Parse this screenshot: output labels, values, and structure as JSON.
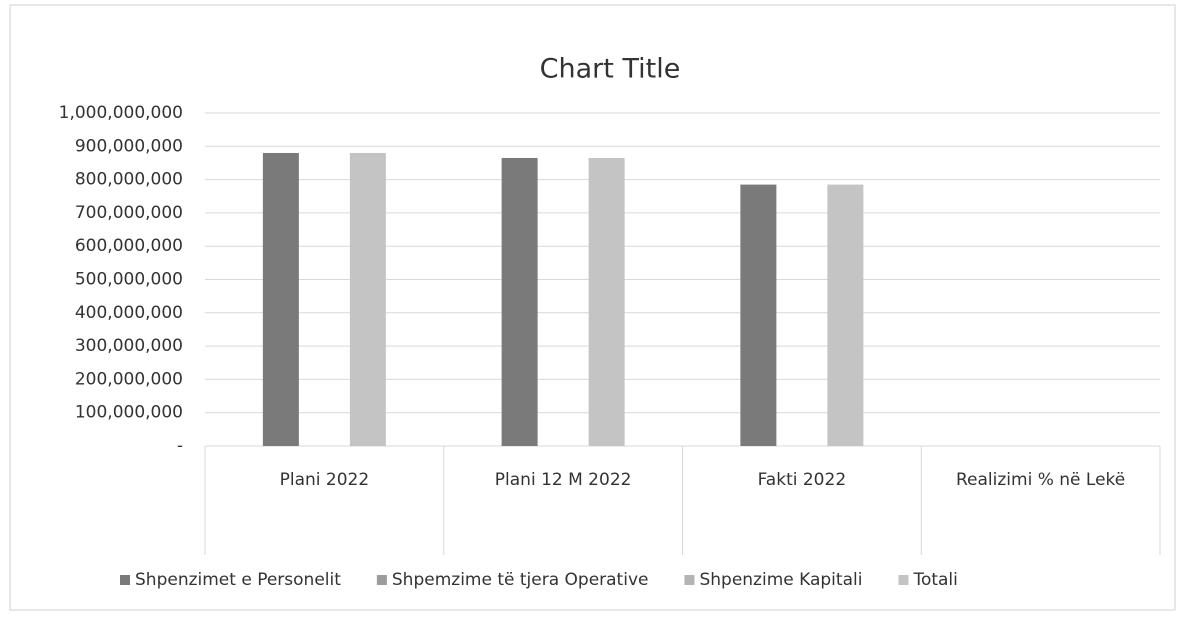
{
  "chart_data": {
    "type": "bar",
    "title": "Chart Title",
    "categories": [
      "Plani 2022",
      "Plani 12 M 2022",
      "Fakti 2022",
      "Realizimi % në Lekë"
    ],
    "series": [
      {
        "name": "Shpenzimet e Personelit",
        "color": "#7a7a7a",
        "values": [
          880000000,
          865000000,
          785000000,
          0
        ]
      },
      {
        "name": "Shpemzime të tjera Operative",
        "color": "#9c9c9c",
        "values": [
          0,
          0,
          0,
          0
        ]
      },
      {
        "name": "Shpenzime Kapitali",
        "color": "#b4b4b4",
        "values": [
          0,
          0,
          0,
          0
        ]
      },
      {
        "name": "Totali",
        "color": "#c4c4c4",
        "values": [
          880000000,
          865000000,
          785000000,
          0
        ]
      }
    ],
    "ylim": [
      0,
      1000000000
    ],
    "yticks": [
      {
        "value": 0,
        "label": "-"
      },
      {
        "value": 100000000,
        "label": "100,000,000"
      },
      {
        "value": 200000000,
        "label": "200,000,000"
      },
      {
        "value": 300000000,
        "label": "300,000,000"
      },
      {
        "value": 400000000,
        "label": "400,000,000"
      },
      {
        "value": 500000000,
        "label": "500,000,000"
      },
      {
        "value": 600000000,
        "label": "600,000,000"
      },
      {
        "value": 700000000,
        "label": "700,000,000"
      },
      {
        "value": 800000000,
        "label": "800,000,000"
      },
      {
        "value": 900000000,
        "label": "900,000,000"
      },
      {
        "value": 1000000000,
        "label": "1,000,000,000"
      }
    ],
    "grid": true,
    "legend": "bottom"
  }
}
